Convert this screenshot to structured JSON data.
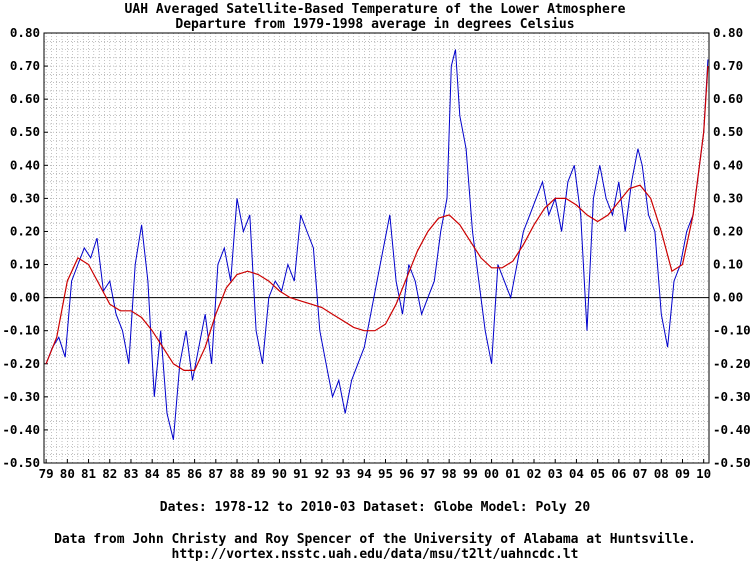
{
  "chart_data": {
    "type": "line",
    "title": "UAH Averaged Satellite-Based Temperature of the Lower Atmosphere",
    "subtitle": "Departure from 1979-1998 average in degrees Celsius",
    "ylim": [
      -0.5,
      0.8
    ],
    "xlim": [
      1978.9,
      2010.25
    ],
    "y_ticks": [
      "0.80",
      "0.70",
      "0.60",
      "0.50",
      "0.40",
      "0.30",
      "0.20",
      "0.10",
      "0.00",
      "-0.10",
      "-0.20",
      "-0.30",
      "-0.40",
      "-0.50"
    ],
    "x_ticks": [
      "79",
      "80",
      "81",
      "82",
      "83",
      "84",
      "85",
      "86",
      "87",
      "88",
      "89",
      "90",
      "91",
      "92",
      "93",
      "94",
      "95",
      "96",
      "97",
      "98",
      "99",
      "00",
      "01",
      "02",
      "03",
      "04",
      "05",
      "06",
      "07",
      "08",
      "09",
      "10"
    ],
    "grid": true,
    "zero_line": true,
    "series": [
      {
        "color": "#0000cc",
        "x": [
          1979.0,
          1979.3,
          1979.6,
          1979.9,
          1980.2,
          1980.5,
          1980.8,
          1981.1,
          1981.4,
          1981.7,
          1982.0,
          1982.3,
          1982.6,
          1982.9,
          1983.2,
          1983.5,
          1983.8,
          1984.1,
          1984.4,
          1984.7,
          1985.0,
          1985.3,
          1985.6,
          1985.9,
          1986.2,
          1986.5,
          1986.8,
          1987.1,
          1987.4,
          1987.7,
          1988.0,
          1988.3,
          1988.6,
          1988.9,
          1989.2,
          1989.5,
          1989.8,
          1990.1,
          1990.4,
          1990.7,
          1991.0,
          1991.3,
          1991.6,
          1991.9,
          1992.2,
          1992.5,
          1992.8,
          1993.1,
          1993.4,
          1993.7,
          1994.0,
          1994.3,
          1994.6,
          1994.9,
          1995.2,
          1995.5,
          1995.8,
          1996.1,
          1996.4,
          1996.7,
          1997.0,
          1997.3,
          1997.6,
          1997.9,
          1998.1,
          1998.3,
          1998.5,
          1998.8,
          1999.1,
          1999.4,
          1999.7,
          2000.0,
          2000.3,
          2000.6,
          2000.9,
          2001.2,
          2001.5,
          2001.8,
          2002.1,
          2002.4,
          2002.7,
          2003.0,
          2003.3,
          2003.6,
          2003.9,
          2004.2,
          2004.5,
          2004.8,
          2005.1,
          2005.4,
          2005.7,
          2006.0,
          2006.3,
          2006.6,
          2006.9,
          2007.1,
          2007.4,
          2007.7,
          2008.0,
          2008.3,
          2008.6,
          2008.9,
          2009.2,
          2009.5,
          2009.8,
          2010.0,
          2010.2
        ],
        "values": [
          -0.2,
          -0.15,
          -0.12,
          -0.18,
          0.05,
          0.1,
          0.15,
          0.12,
          0.18,
          0.02,
          0.05,
          -0.05,
          -0.1,
          -0.2,
          0.1,
          0.22,
          0.05,
          -0.3,
          -0.1,
          -0.35,
          -0.43,
          -0.2,
          -0.1,
          -0.25,
          -0.15,
          -0.05,
          -0.2,
          0.1,
          0.15,
          0.05,
          0.3,
          0.2,
          0.25,
          -0.1,
          -0.2,
          0.0,
          0.05,
          0.02,
          0.1,
          0.05,
          0.25,
          0.2,
          0.15,
          -0.1,
          -0.2,
          -0.3,
          -0.25,
          -0.35,
          -0.25,
          -0.2,
          -0.15,
          -0.05,
          0.05,
          0.15,
          0.25,
          0.05,
          -0.05,
          0.1,
          0.05,
          -0.05,
          0.0,
          0.05,
          0.2,
          0.3,
          0.7,
          0.75,
          0.55,
          0.45,
          0.2,
          0.05,
          -0.1,
          -0.2,
          0.1,
          0.05,
          0.0,
          0.1,
          0.2,
          0.25,
          0.3,
          0.35,
          0.25,
          0.3,
          0.2,
          0.35,
          0.4,
          0.25,
          -0.1,
          0.3,
          0.4,
          0.3,
          0.25,
          0.35,
          0.2,
          0.35,
          0.45,
          0.4,
          0.25,
          0.2,
          -0.05,
          -0.15,
          0.05,
          0.1,
          0.2,
          0.25,
          0.4,
          0.5,
          0.72
        ]
      },
      {
        "color": "#cc0000",
        "x": [
          1979.0,
          1979.5,
          1980.0,
          1980.5,
          1981.0,
          1981.5,
          1982.0,
          1982.5,
          1983.0,
          1983.5,
          1984.0,
          1984.5,
          1985.0,
          1985.5,
          1986.0,
          1986.5,
          1987.0,
          1987.5,
          1988.0,
          1988.5,
          1989.0,
          1989.5,
          1990.0,
          1990.5,
          1991.0,
          1991.5,
          1992.0,
          1992.5,
          1993.0,
          1993.5,
          1994.0,
          1994.5,
          1995.0,
          1995.5,
          1996.0,
          1996.5,
          1997.0,
          1997.5,
          1998.0,
          1998.5,
          1999.0,
          1999.5,
          2000.0,
          2000.5,
          2001.0,
          2001.5,
          2002.0,
          2002.5,
          2003.0,
          2003.5,
          2004.0,
          2004.5,
          2005.0,
          2005.5,
          2006.0,
          2006.5,
          2007.0,
          2007.5,
          2008.0,
          2008.5,
          2009.0,
          2009.5,
          2010.0,
          2010.2
        ],
        "values": [
          -0.2,
          -0.12,
          0.05,
          0.12,
          0.1,
          0.04,
          -0.02,
          -0.04,
          -0.04,
          -0.06,
          -0.1,
          -0.15,
          -0.2,
          -0.22,
          -0.22,
          -0.15,
          -0.05,
          0.03,
          0.07,
          0.08,
          0.07,
          0.05,
          0.02,
          0.0,
          -0.01,
          -0.02,
          -0.03,
          -0.05,
          -0.07,
          -0.09,
          -0.1,
          -0.1,
          -0.08,
          -0.02,
          0.06,
          0.14,
          0.2,
          0.24,
          0.25,
          0.22,
          0.17,
          0.12,
          0.09,
          0.09,
          0.11,
          0.16,
          0.22,
          0.27,
          0.3,
          0.3,
          0.28,
          0.25,
          0.23,
          0.25,
          0.29,
          0.33,
          0.34,
          0.3,
          0.2,
          0.08,
          0.1,
          0.25,
          0.5,
          0.7
        ]
      }
    ]
  },
  "footer": {
    "line1": "Dates: 1978-12 to 2010-03  Dataset: Globe  Model: Poly 20",
    "line2": "Data from John Christy and Roy Spencer of the University of Alabama at Huntsville.",
    "line3": "http://vortex.nsstc.uah.edu/data/msu/t2lt/uahncdc.lt"
  }
}
